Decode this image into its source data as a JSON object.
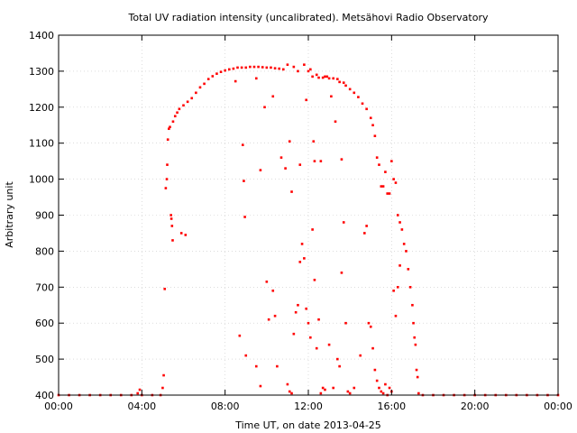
{
  "chart_data": {
    "type": "scatter",
    "title": "Total UV radiation intensity (uncalibrated). Metsähovi Radio Observatory",
    "xlabel": "Time UT, on date 2013-04-25",
    "ylabel": "Arbitrary unit",
    "xlim": [
      0,
      24
    ],
    "ylim": [
      400,
      1400
    ],
    "x_ticks": [
      {
        "value": 0,
        "label": "00:00"
      },
      {
        "value": 4,
        "label": "04:00"
      },
      {
        "value": 8,
        "label": "08:00"
      },
      {
        "value": 12,
        "label": "12:00"
      },
      {
        "value": 16,
        "label": "16:00"
      },
      {
        "value": 20,
        "label": "20:00"
      },
      {
        "value": 24,
        "label": "00:00"
      }
    ],
    "y_ticks": [
      {
        "value": 400,
        "label": "400"
      },
      {
        "value": 500,
        "label": "500"
      },
      {
        "value": 600,
        "label": "600"
      },
      {
        "value": 700,
        "label": "700"
      },
      {
        "value": 800,
        "label": "800"
      },
      {
        "value": 900,
        "label": "900"
      },
      {
        "value": 1000,
        "label": "1000"
      },
      {
        "value": 1100,
        "label": "1100"
      },
      {
        "value": 1200,
        "label": "1200"
      },
      {
        "value": 1300,
        "label": "1300"
      },
      {
        "value": 1400,
        "label": "1400"
      }
    ],
    "grid": true,
    "series_color": "#ff0000",
    "series": [
      {
        "points": [
          [
            0.0,
            400
          ],
          [
            0.5,
            400
          ],
          [
            1.0,
            400
          ],
          [
            1.5,
            400
          ],
          [
            2.0,
            400
          ],
          [
            2.5,
            400
          ],
          [
            3.0,
            400
          ],
          [
            3.5,
            400
          ],
          [
            3.8,
            405
          ],
          [
            3.9,
            415
          ],
          [
            4.0,
            400
          ],
          [
            4.5,
            400
          ],
          [
            4.9,
            400
          ],
          [
            5.0,
            420
          ],
          [
            5.05,
            455
          ],
          [
            5.1,
            695
          ],
          [
            5.15,
            975
          ],
          [
            5.2,
            1000
          ],
          [
            5.22,
            1040
          ],
          [
            5.25,
            1110
          ],
          [
            5.3,
            1140
          ],
          [
            5.35,
            1145
          ],
          [
            5.4,
            900
          ],
          [
            5.42,
            890
          ],
          [
            5.45,
            870
          ],
          [
            5.48,
            830
          ],
          [
            5.5,
            1160
          ],
          [
            5.6,
            1175
          ],
          [
            5.7,
            1185
          ],
          [
            5.8,
            1195
          ],
          [
            5.9,
            850
          ],
          [
            6.0,
            1205
          ],
          [
            6.1,
            845
          ],
          [
            6.2,
            1215
          ],
          [
            6.4,
            1225
          ],
          [
            6.6,
            1240
          ],
          [
            6.8,
            1255
          ],
          [
            7.0,
            1265
          ],
          [
            7.2,
            1278
          ],
          [
            7.4,
            1286
          ],
          [
            7.6,
            1293
          ],
          [
            7.8,
            1298
          ],
          [
            8.0,
            1302
          ],
          [
            8.2,
            1305
          ],
          [
            8.4,
            1307
          ],
          [
            8.5,
            1272
          ],
          [
            8.6,
            1310
          ],
          [
            8.7,
            565
          ],
          [
            8.8,
            1310
          ],
          [
            8.85,
            1095
          ],
          [
            8.9,
            995
          ],
          [
            8.95,
            895
          ],
          [
            9.0,
            1310
          ],
          [
            9.2,
            1312
          ],
          [
            9.4,
            1312
          ],
          [
            9.5,
            1280
          ],
          [
            9.6,
            1312
          ],
          [
            9.7,
            1025
          ],
          [
            9.8,
            1311
          ],
          [
            9.9,
            1200
          ],
          [
            10.0,
            1310
          ],
          [
            10.2,
            1310
          ],
          [
            10.3,
            1230
          ],
          [
            10.4,
            1308
          ],
          [
            10.6,
            1307
          ],
          [
            10.7,
            1060
          ],
          [
            10.8,
            1305
          ],
          [
            10.9,
            1030
          ],
          [
            11.0,
            1318
          ],
          [
            11.1,
            1105
          ],
          [
            11.2,
            965
          ],
          [
            11.3,
            1312
          ],
          [
            11.5,
            1300
          ],
          [
            11.6,
            1040
          ],
          [
            11.8,
            1318
          ],
          [
            11.9,
            1220
          ],
          [
            12.0,
            1300
          ],
          [
            12.1,
            1305
          ],
          [
            12.2,
            1285
          ],
          [
            12.25,
            1105
          ],
          [
            12.3,
            1050
          ],
          [
            12.4,
            1290
          ],
          [
            12.5,
            1282
          ],
          [
            12.6,
            1050
          ],
          [
            12.7,
            1282
          ],
          [
            12.8,
            1285
          ],
          [
            12.9,
            1285
          ],
          [
            13.0,
            1280
          ],
          [
            13.1,
            1230
          ],
          [
            13.2,
            1280
          ],
          [
            13.3,
            1160
          ],
          [
            13.4,
            1278
          ],
          [
            13.5,
            1270
          ],
          [
            13.6,
            1055
          ],
          [
            13.7,
            1268
          ],
          [
            13.8,
            1260
          ],
          [
            14.0,
            1250
          ],
          [
            14.2,
            1240
          ],
          [
            14.4,
            1228
          ],
          [
            14.6,
            1210
          ],
          [
            14.8,
            1195
          ],
          [
            15.0,
            1170
          ],
          [
            15.1,
            1150
          ],
          [
            15.2,
            1120
          ],
          [
            15.3,
            1060
          ],
          [
            15.4,
            1040
          ],
          [
            15.5,
            980
          ],
          [
            15.6,
            980
          ],
          [
            15.7,
            1020
          ],
          [
            15.8,
            960
          ],
          [
            15.9,
            960
          ],
          [
            16.0,
            1050
          ],
          [
            16.1,
            1000
          ],
          [
            16.2,
            990
          ],
          [
            16.3,
            900
          ],
          [
            16.4,
            880
          ],
          [
            16.5,
            860
          ],
          [
            16.6,
            820
          ],
          [
            16.7,
            800
          ],
          [
            16.8,
            750
          ],
          [
            16.9,
            700
          ],
          [
            17.0,
            650
          ],
          [
            17.05,
            600
          ],
          [
            17.1,
            560
          ],
          [
            17.15,
            540
          ],
          [
            17.2,
            470
          ],
          [
            17.25,
            450
          ],
          [
            17.3,
            405
          ],
          [
            17.5,
            400
          ],
          [
            18.0,
            400
          ],
          [
            18.5,
            400
          ],
          [
            19.0,
            400
          ],
          [
            19.5,
            400
          ],
          [
            20.0,
            400
          ],
          [
            20.5,
            400
          ],
          [
            21.0,
            400
          ],
          [
            21.5,
            400
          ],
          [
            22.0,
            400
          ],
          [
            22.5,
            400
          ],
          [
            23.0,
            400
          ],
          [
            23.5,
            400
          ],
          [
            24.0,
            400
          ],
          [
            9.0,
            510
          ],
          [
            9.5,
            480
          ],
          [
            9.7,
            425
          ],
          [
            10.0,
            715
          ],
          [
            10.1,
            610
          ],
          [
            10.3,
            690
          ],
          [
            10.4,
            620
          ],
          [
            10.5,
            480
          ],
          [
            11.0,
            430
          ],
          [
            11.1,
            410
          ],
          [
            11.2,
            405
          ],
          [
            11.3,
            570
          ],
          [
            11.4,
            630
          ],
          [
            11.5,
            650
          ],
          [
            11.6,
            770
          ],
          [
            11.7,
            820
          ],
          [
            11.8,
            780
          ],
          [
            11.9,
            640
          ],
          [
            12.0,
            600
          ],
          [
            12.1,
            560
          ],
          [
            12.2,
            860
          ],
          [
            12.3,
            720
          ],
          [
            12.4,
            530
          ],
          [
            12.5,
            610
          ],
          [
            12.6,
            405
          ],
          [
            12.7,
            420
          ],
          [
            12.8,
            415
          ],
          [
            13.0,
            540
          ],
          [
            13.2,
            420
          ],
          [
            13.4,
            500
          ],
          [
            13.5,
            480
          ],
          [
            13.6,
            740
          ],
          [
            13.7,
            880
          ],
          [
            13.8,
            600
          ],
          [
            13.9,
            410
          ],
          [
            14.0,
            405
          ],
          [
            14.2,
            420
          ],
          [
            14.5,
            510
          ],
          [
            14.7,
            850
          ],
          [
            14.8,
            870
          ],
          [
            14.9,
            600
          ],
          [
            15.0,
            590
          ],
          [
            15.1,
            530
          ],
          [
            15.2,
            470
          ],
          [
            15.3,
            440
          ],
          [
            15.4,
            420
          ],
          [
            15.5,
            410
          ],
          [
            15.6,
            405
          ],
          [
            15.7,
            430
          ],
          [
            15.8,
            400
          ],
          [
            15.9,
            420
          ],
          [
            16.0,
            410
          ],
          [
            16.1,
            690
          ],
          [
            16.2,
            620
          ],
          [
            16.3,
            700
          ],
          [
            16.4,
            760
          ]
        ]
      }
    ]
  }
}
